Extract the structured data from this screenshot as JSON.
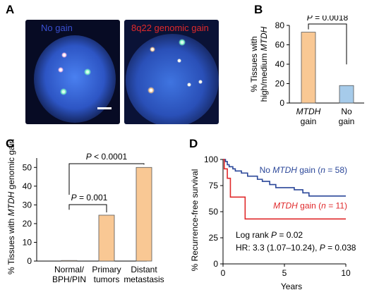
{
  "panels": {
    "a": {
      "letter": "A",
      "left_label": "No gain",
      "right_label": "8q22 genomic gain",
      "left_label_color": "#3a4fd1",
      "right_label_color": "#e0292b"
    },
    "b": {
      "letter": "B"
    },
    "c": {
      "letter": "C"
    },
    "d": {
      "letter": "D"
    }
  },
  "colors": {
    "mtdh_gain_bar": "#f9c894",
    "no_gain_bar": "#a6cbea",
    "bar_stroke": "#555555",
    "km_no_gain": "#2b4799",
    "km_gain": "#e0292b",
    "nucleus_dark": "#0a1030",
    "nucleus_blue": "#3d6ee0",
    "dot_green": "#7cf2c4",
    "dot_orange": "#ffcc90",
    "dot_white": "#fffbe6",
    "dot_pink": "#ffc2e6"
  },
  "chart_data": [
    {
      "panel": "B",
      "type": "bar",
      "categories": [
        "MTDH gain",
        "No gain"
      ],
      "category_lines": [
        [
          "MTDH",
          "gain"
        ],
        [
          "No",
          "gain"
        ]
      ],
      "values": [
        73,
        18
      ],
      "ylabel_lines": [
        "% Tissues with",
        "high/medium MTDH"
      ],
      "ylim": [
        0,
        80
      ],
      "yticks": [
        0,
        20,
        40,
        60,
        80
      ],
      "annotation": "P = 0.0018",
      "grid": false
    },
    {
      "panel": "C",
      "type": "bar",
      "categories": [
        "Normal/BPH/PIN",
        "Primary tumors",
        "Distant metastasis"
      ],
      "category_lines": [
        [
          "Normal/",
          "BPH/PIN"
        ],
        [
          "Primary",
          "tumors"
        ],
        [
          "Distant",
          "metastasis"
        ]
      ],
      "values": [
        0.3,
        24.5,
        50
      ],
      "ylabel": "% Tissues with MTDH genomic gain",
      "ylim": [
        0,
        55
      ],
      "yticks": [
        0,
        10,
        20,
        30,
        40,
        50
      ],
      "annotations": [
        "P = 0.001",
        "P < 0.0001"
      ],
      "grid": false
    },
    {
      "panel": "D",
      "type": "line",
      "xlabel": "Years",
      "ylabel": "% Recurrence-free survival",
      "xlim": [
        0,
        10
      ],
      "ylim": [
        0,
        100
      ],
      "xticks": [
        0,
        5,
        10
      ],
      "yticks": [
        0,
        25,
        50,
        75,
        100
      ],
      "series": [
        {
          "name": "No MTDH gain (n = 58)",
          "label_parts": [
            "No ",
            "MTDH",
            " gain (",
            "n",
            " = 58)"
          ],
          "steps": [
            [
              0,
              100
            ],
            [
              0.2,
              98
            ],
            [
              0.35,
              95
            ],
            [
              0.5,
              93
            ],
            [
              0.8,
              91
            ],
            [
              1.0,
              89
            ],
            [
              1.5,
              87
            ],
            [
              2.0,
              84
            ],
            [
              2.8,
              81
            ],
            [
              3.2,
              79
            ],
            [
              3.8,
              76
            ],
            [
              4.3,
              73
            ],
            [
              5.8,
              71
            ],
            [
              6.5,
              68
            ],
            [
              7.0,
              65
            ],
            [
              10,
              65
            ]
          ]
        },
        {
          "name": "MTDH gain (n = 11)",
          "label_parts": [
            "MTDH",
            " gain (",
            "n",
            " = 11)"
          ],
          "steps": [
            [
              0,
              100
            ],
            [
              0.1,
              91
            ],
            [
              0.35,
              82
            ],
            [
              0.6,
              64
            ],
            [
              1.8,
              43
            ],
            [
              10,
              43
            ]
          ]
        }
      ],
      "annotation_lines": [
        "Log rank P = 0.02",
        "HR: 3.3 (1.07–10.24), P = 0.038"
      ]
    }
  ]
}
